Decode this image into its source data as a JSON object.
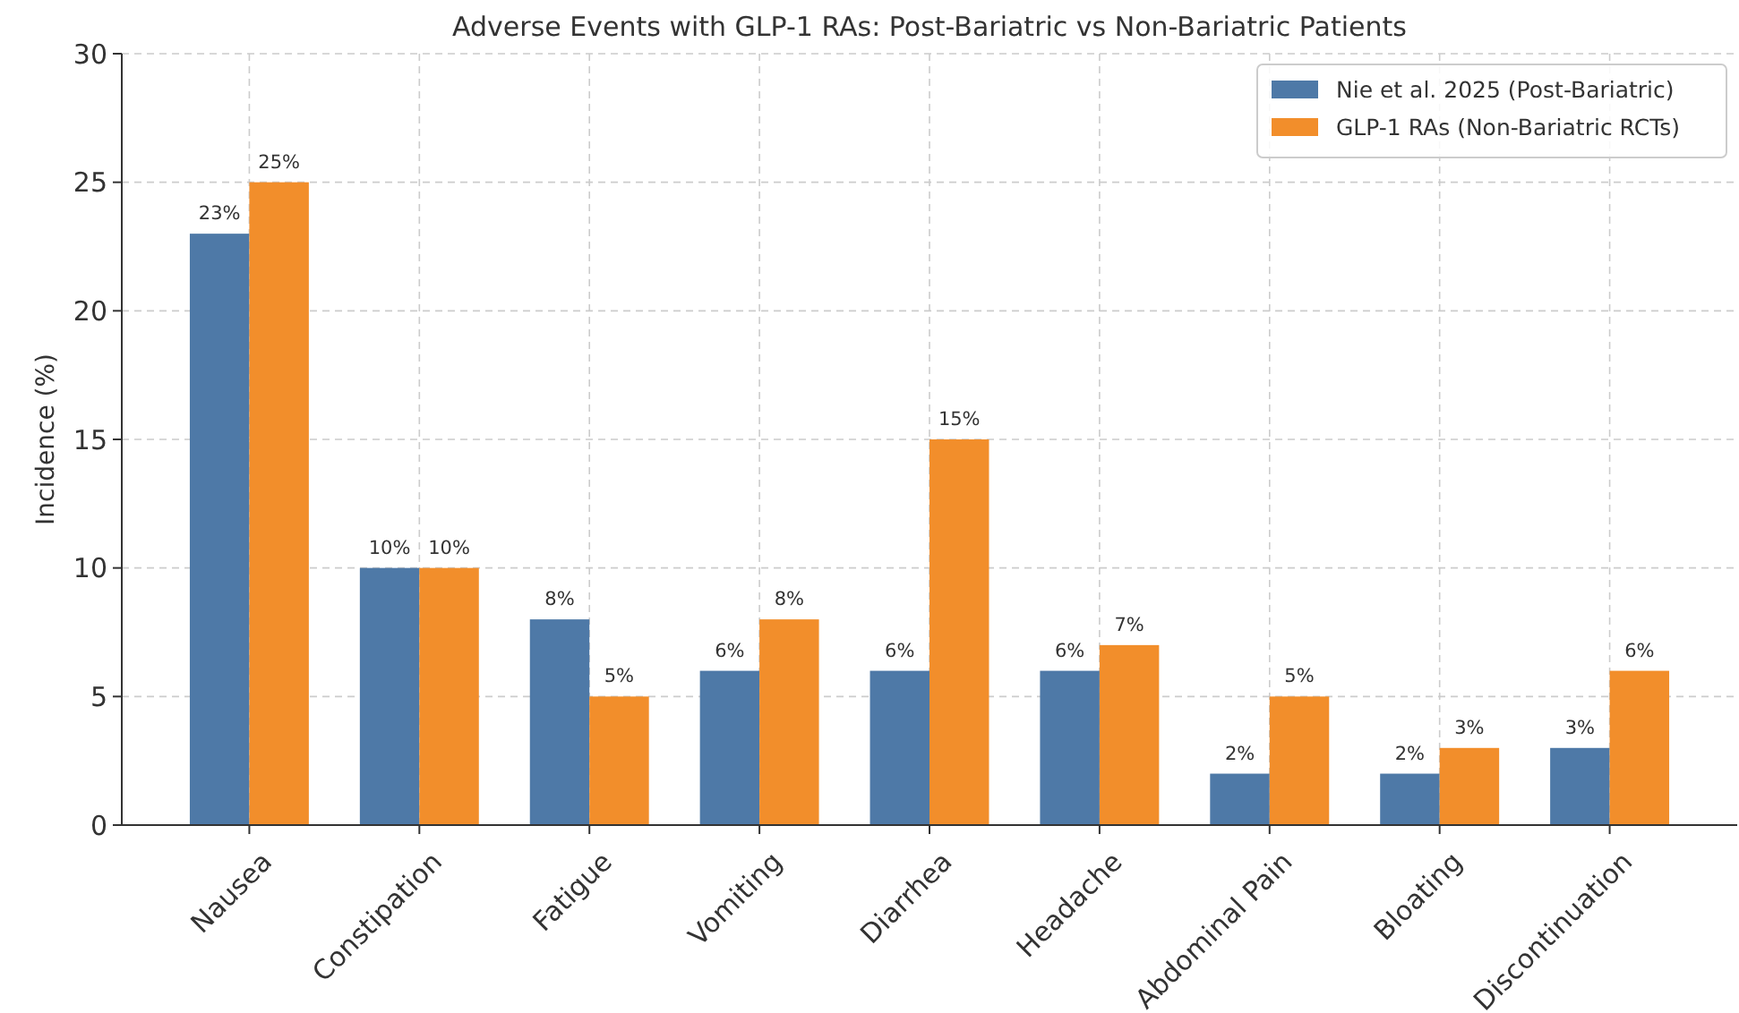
{
  "chart_data": {
    "type": "bar",
    "title": "Adverse Events with GLP-1 RAs: Post-Bariatric vs Non-Bariatric Patients",
    "ylabel": "Incidence (%)",
    "categories": [
      "Nausea",
      "Constipation",
      "Fatigue",
      "Vomiting",
      "Diarrhea",
      "Headache",
      "Abdominal Pain",
      "Bloating",
      "Discontinuation"
    ],
    "series": [
      {
        "name": "Nie et al. 2025 (Post-Bariatric)",
        "color": "#4e79a7",
        "values": [
          23,
          10,
          8,
          6,
          6,
          6,
          2,
          2,
          3
        ],
        "value_labels": [
          "23%",
          "10%",
          "8%",
          "6%",
          "6%",
          "6%",
          "2%",
          "2%",
          "3%"
        ]
      },
      {
        "name": "GLP-1 RAs (Non-Bariatric RCTs)",
        "color": "#f28e2b",
        "values": [
          25,
          10,
          5,
          8,
          15,
          7,
          5,
          3,
          6
        ],
        "value_labels": [
          "25%",
          "10%",
          "5%",
          "8%",
          "15%",
          "7%",
          "5%",
          "3%",
          "6%"
        ]
      }
    ],
    "ylim": [
      0,
      30
    ],
    "yticks": [
      0,
      5,
      10,
      15,
      20,
      25,
      30
    ],
    "grid": true,
    "legend": "top right"
  }
}
